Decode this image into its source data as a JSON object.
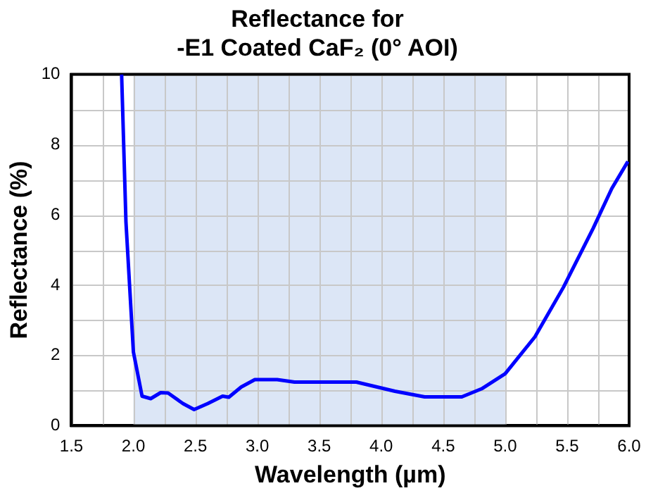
{
  "chart_data": {
    "type": "line",
    "title": [
      "Reflectance for",
      "-E1 Coated CaF₂ (0° AOI)"
    ],
    "xlabel": "Wavelength (µm)",
    "ylabel": "Reflectance (%)",
    "x": [
      1.905,
      1.94,
      2.0,
      2.07,
      2.14,
      2.22,
      2.28,
      2.4,
      2.49,
      2.6,
      2.72,
      2.77,
      2.87,
      2.98,
      3.16,
      3.3,
      3.8,
      4.11,
      4.35,
      4.65,
      4.81,
      5.0,
      5.24,
      5.47,
      5.71,
      5.86,
      5.99
    ],
    "series": [
      {
        "color": "#0000ff",
        "values": [
          10,
          5.8,
          2.1,
          0.84,
          0.77,
          0.94,
          0.93,
          0.63,
          0.46,
          0.63,
          0.84,
          0.81,
          1.1,
          1.31,
          1.31,
          1.24,
          1.24,
          0.98,
          0.82,
          0.82,
          1.05,
          1.48,
          2.53,
          3.94,
          5.62,
          6.75,
          7.52
        ]
      }
    ],
    "xlim": [
      1.5,
      6.0
    ],
    "xticks": [
      {
        "value": 1.5,
        "label": "1.5"
      },
      {
        "value": 1.75,
        "label": null
      },
      {
        "value": 2,
        "label": "2.0"
      },
      {
        "value": 2.25,
        "label": null
      },
      {
        "value": 2.5,
        "label": "2.5"
      },
      {
        "value": 2.75,
        "label": null
      },
      {
        "value": 3,
        "label": "3.0"
      },
      {
        "value": 3.25,
        "label": null
      },
      {
        "value": 3.5,
        "label": "3.5"
      },
      {
        "value": 3.75,
        "label": null
      },
      {
        "value": 4,
        "label": "4.0"
      },
      {
        "value": 4.25,
        "label": null
      },
      {
        "value": 4.5,
        "label": "4.5"
      },
      {
        "value": 4.75,
        "label": null
      },
      {
        "value": 5,
        "label": "5.0"
      },
      {
        "value": 5.25,
        "label": null
      },
      {
        "value": 5.5,
        "label": "5.5"
      },
      {
        "value": 5.75,
        "label": null
      },
      {
        "value": 6,
        "label": "6.0"
      }
    ],
    "ylim": [
      0,
      10
    ],
    "yticks": [
      0,
      {
        "value": 1,
        "label": null
      },
      2,
      {
        "value": 3,
        "label": null
      },
      4,
      {
        "value": 5,
        "label": null
      },
      6,
      {
        "value": 7,
        "label": null
      },
      8,
      {
        "value": 9,
        "label": null
      },
      10
    ],
    "bands": [
      {
        "axis": "x",
        "from": 2.0,
        "to": 5.0,
        "color": "#dce6f6"
      }
    ],
    "grid": true,
    "legend": false,
    "marker": "none",
    "line_style": "solid"
  }
}
